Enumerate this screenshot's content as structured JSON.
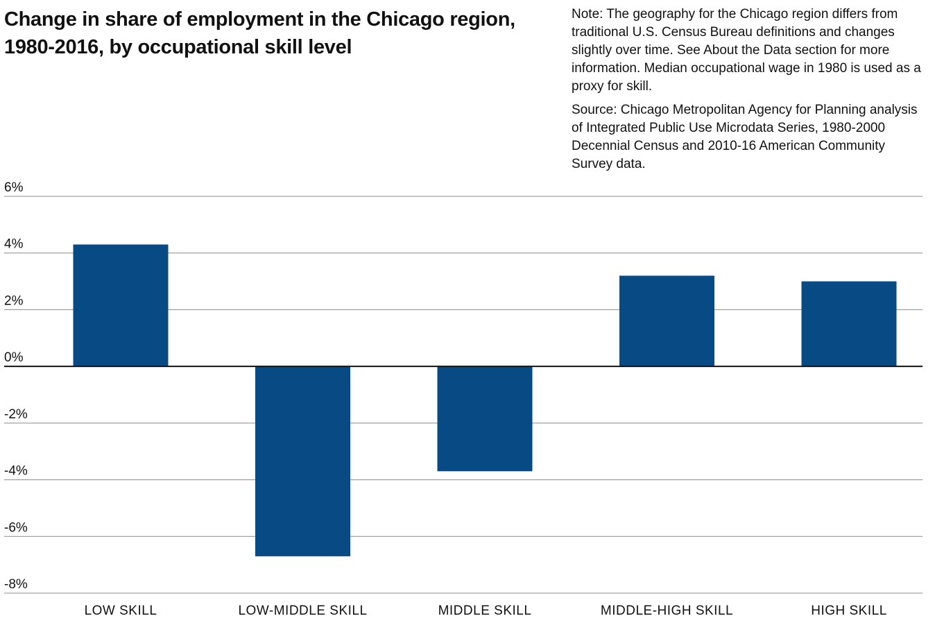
{
  "header": {
    "title": "Change in share of employment in the Chicago region, 1980-2016, by occupational skill level"
  },
  "notes": {
    "note": "Note: The geography for the Chicago region differs from traditional U.S. Census Bureau definitions and changes slightly over time. See About the Data section for more information. Median occupational wage in 1980 is used as a proxy for skill.",
    "source": "Source: Chicago Metropolitan Agency for Planning analysis of Integrated Public Use Microdata Series, 1980-2000 Decennial Census and 2010-16 American Community Survey data."
  },
  "colors": {
    "bar": "#084a83",
    "gridline": "#8a8a8a",
    "zero_line": "#111111"
  },
  "chart_data": {
    "type": "bar",
    "title": "Change in share of employment in the Chicago region, 1980-2016, by occupational skill level",
    "categories": [
      "LOW SKILL",
      "LOW-MIDDLE SKILL",
      "MIDDLE SKILL",
      "MIDDLE-HIGH SKILL",
      "HIGH SKILL"
    ],
    "values": [
      4.3,
      -6.7,
      -3.7,
      3.2,
      3.0
    ],
    "ylim": [
      -8,
      6
    ],
    "yticks": [
      6,
      4,
      2,
      0,
      -2,
      -4,
      -6,
      -8
    ],
    "ytick_labels": [
      "6%",
      "4%",
      "2%",
      "0%",
      "-2%",
      "-4%",
      "-6%",
      "-8%"
    ],
    "xlabel": "",
    "ylabel": "",
    "grid": true,
    "legend": "none"
  }
}
